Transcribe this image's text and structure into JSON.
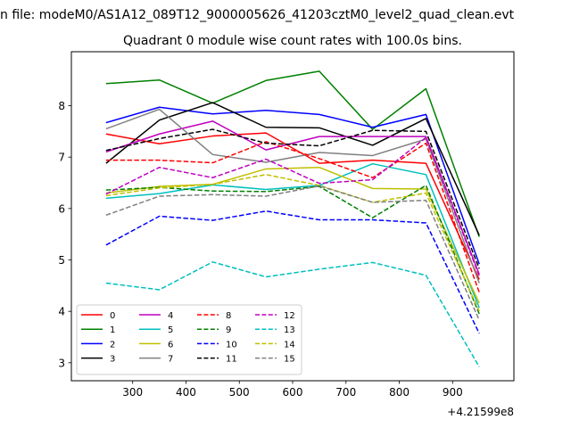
{
  "chart_data": {
    "type": "line",
    "file_title": "n file: modeM0/AS1A12_089T12_9000005626_41203cztM0_level2_quad_clean.evt",
    "title": "Quadrant 0 module wise count rates with 100.0s bins.",
    "xlabel": "",
    "ylabel": "",
    "x_offset_label": "+4.21599e8",
    "x": [
      250,
      350,
      450,
      550,
      650,
      750,
      850,
      950
    ],
    "xlim": [
      185,
      1015
    ],
    "ylim": [
      2.65,
      9.05
    ],
    "x_ticks": [
      "300",
      "400",
      "500",
      "600",
      "700",
      "800",
      "900"
    ],
    "x_tick_values": [
      300,
      400,
      500,
      600,
      700,
      800,
      900
    ],
    "y_ticks": [
      "3",
      "4",
      "5",
      "6",
      "7",
      "8"
    ],
    "y_tick_values": [
      3,
      4,
      5,
      6,
      7,
      8
    ],
    "grid": false,
    "legend_placement": "lower-left",
    "legend_columns": 4,
    "series": [
      {
        "name": "0",
        "color": "#ff0000",
        "dash": "solid",
        "values": [
          7.45,
          7.26,
          7.41,
          7.47,
          6.88,
          6.94,
          6.88,
          4.62
        ]
      },
      {
        "name": "1",
        "color": "#008000",
        "dash": "solid",
        "values": [
          8.43,
          8.5,
          8.05,
          8.49,
          8.67,
          7.54,
          8.33,
          5.45
        ]
      },
      {
        "name": "2",
        "color": "#0000ff",
        "dash": "solid",
        "values": [
          7.67,
          7.97,
          7.84,
          7.91,
          7.83,
          7.58,
          7.83,
          4.92
        ]
      },
      {
        "name": "3",
        "color": "#000000",
        "dash": "solid",
        "values": [
          6.88,
          7.72,
          8.06,
          7.58,
          7.57,
          7.23,
          7.75,
          5.48
        ]
      },
      {
        "name": "4",
        "color": "#bf00bf",
        "dash": "solid",
        "values": [
          7.1,
          7.45,
          7.7,
          7.14,
          7.4,
          7.4,
          7.4,
          4.72
        ]
      },
      {
        "name": "5",
        "color": "#00bfbf",
        "dash": "solid",
        "values": [
          6.2,
          6.29,
          6.46,
          6.37,
          6.45,
          6.87,
          6.66,
          4.07
        ]
      },
      {
        "name": "6",
        "color": "#bfbf00",
        "dash": "solid",
        "values": [
          6.3,
          6.43,
          6.47,
          6.77,
          6.8,
          6.39,
          6.38,
          4.16
        ]
      },
      {
        "name": "7",
        "color": "#808080",
        "dash": "solid",
        "values": [
          7.55,
          7.93,
          7.05,
          6.9,
          7.09,
          7.03,
          7.35,
          4.55
        ]
      },
      {
        "name": "8",
        "color": "#ff0000",
        "dash": "dashed",
        "values": [
          6.94,
          6.94,
          6.89,
          7.3,
          6.97,
          6.6,
          7.27,
          4.37
        ]
      },
      {
        "name": "9",
        "color": "#008000",
        "dash": "dashed",
        "values": [
          6.36,
          6.41,
          6.34,
          6.33,
          6.43,
          5.82,
          6.45,
          3.95
        ]
      },
      {
        "name": "10",
        "color": "#0000ff",
        "dash": "dashed",
        "values": [
          5.29,
          5.85,
          5.77,
          5.95,
          5.78,
          5.78,
          5.72,
          3.57
        ]
      },
      {
        "name": "11",
        "color": "#000000",
        "dash": "dashed",
        "values": [
          7.13,
          7.36,
          7.54,
          7.27,
          7.22,
          7.52,
          7.5,
          4.83
        ]
      },
      {
        "name": "12",
        "color": "#bf00bf",
        "dash": "dashed",
        "values": [
          6.28,
          6.8,
          6.6,
          6.96,
          6.49,
          6.56,
          7.38,
          4.69
        ]
      },
      {
        "name": "13",
        "color": "#00bfbf",
        "dash": "dashed",
        "values": [
          4.55,
          4.42,
          4.96,
          4.67,
          4.82,
          4.95,
          4.7,
          2.92
        ]
      },
      {
        "name": "14",
        "color": "#bfbf00",
        "dash": "dashed",
        "values": [
          6.25,
          6.4,
          6.47,
          6.66,
          6.45,
          6.12,
          6.3,
          4.0
        ]
      },
      {
        "name": "15",
        "color": "#808080",
        "dash": "dashed",
        "values": [
          5.87,
          6.24,
          6.27,
          6.24,
          6.44,
          6.12,
          6.16,
          3.83
        ]
      }
    ]
  }
}
